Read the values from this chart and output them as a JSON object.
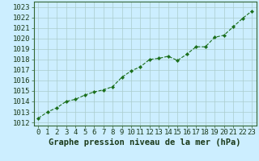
{
  "x": [
    0,
    1,
    2,
    3,
    4,
    5,
    6,
    7,
    8,
    9,
    10,
    11,
    12,
    13,
    14,
    15,
    16,
    17,
    18,
    19,
    20,
    21,
    22,
    23
  ],
  "y": [
    1012.4,
    1013.0,
    1013.4,
    1014.0,
    1014.2,
    1014.6,
    1014.9,
    1015.1,
    1015.4,
    1016.3,
    1016.9,
    1017.3,
    1018.0,
    1018.1,
    1018.3,
    1017.9,
    1018.5,
    1019.2,
    1019.2,
    1020.1,
    1020.3,
    1021.1,
    1021.9,
    1022.6
  ],
  "line_color": "#1a6e1a",
  "marker": "D",
  "marker_size": 2.2,
  "bg_color": "#cceeff",
  "grid_color": "#aacccc",
  "ylabel_ticks": [
    1012,
    1013,
    1014,
    1015,
    1016,
    1017,
    1018,
    1019,
    1020,
    1021,
    1022,
    1023
  ],
  "xlabel": "Graphe pression niveau de la mer (hPa)",
  "xlim": [
    -0.5,
    23.5
  ],
  "ylim": [
    1011.7,
    1023.5
  ],
  "tick_fontsize": 6.5,
  "xlabel_fontsize": 7.5,
  "line_width": 0.8,
  "border_color": "#336633"
}
